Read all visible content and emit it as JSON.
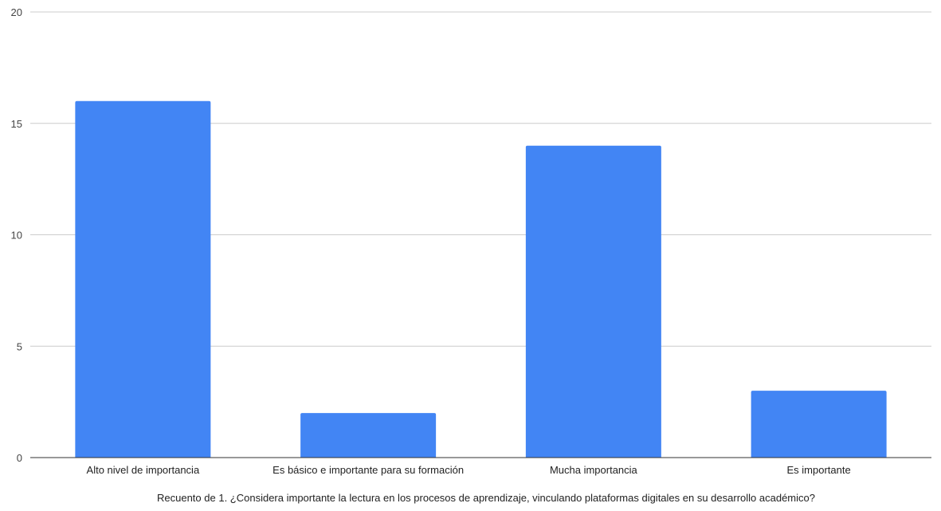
{
  "chart_data": {
    "type": "bar",
    "title": "",
    "xlabel": "Recuento de 1. ¿Considera importante la lectura en los procesos de aprendizaje, vinculando plataformas digitales en su desarrollo académico?",
    "ylabel": "",
    "categories": [
      "Alto nivel de importancia",
      "Es básico e importante para su formación",
      "Mucha importancia",
      "Es importante"
    ],
    "values": [
      16,
      2,
      14,
      3
    ],
    "ylim": [
      0,
      20
    ],
    "yticks": [
      0,
      5,
      10,
      15,
      20
    ],
    "grid": true,
    "legend": "none",
    "colors": {
      "bar": "#4285F4",
      "grid": "#CCCCCC",
      "axis": "#333333"
    }
  }
}
